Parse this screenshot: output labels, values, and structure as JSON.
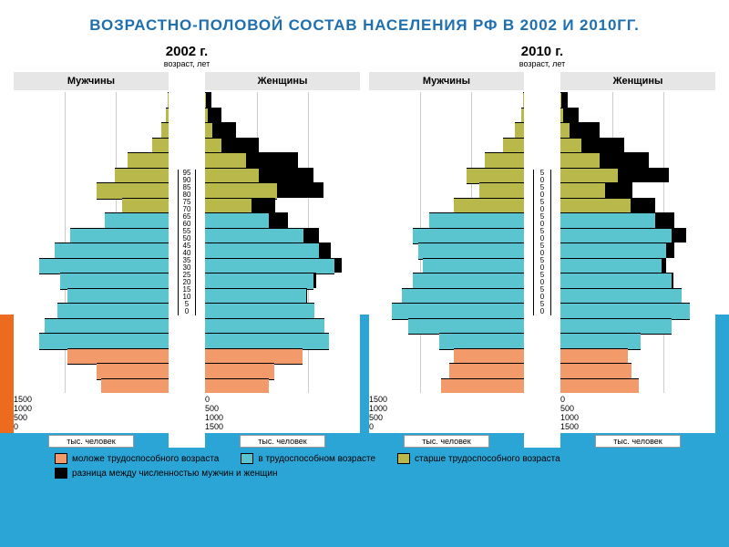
{
  "title": "ВОЗРАСТНО-ПОЛОВОЙ СОСТАВ НАСЕЛЕНИЯ РФ В 2002 И 2010ГГ.",
  "title_color": "#1e6fb0",
  "title_fontsize": 17,
  "colors": {
    "young": "#f39a6a",
    "working": "#5ac4cf",
    "older": "#b9b84a",
    "diff": "#000000",
    "band_blue": "#2aa5d6",
    "band_orange": "#ed6b1f"
  },
  "legend": [
    {
      "key": "young",
      "label": "моложе трудоспособного возраста"
    },
    {
      "key": "working",
      "label": "в трудоспособном возрасте"
    },
    {
      "key": "older",
      "label": "старше трудоспособного возраста"
    },
    {
      "key": "diff",
      "label": "разница между численностью мужчин и женщин"
    }
  ],
  "xaxis": {
    "max": 1500,
    "ticks": [
      1500,
      1000,
      500,
      0
    ],
    "unit_label": "тыс. человек"
  },
  "yaxis": {
    "label": "возраст, лет",
    "step": 5,
    "max": 95
  },
  "male_label": "Мужчины",
  "female_label": "Женщины",
  "charts": [
    {
      "title": "2002 г.",
      "yticks": [
        95,
        90,
        85,
        80,
        75,
        70,
        65,
        60,
        55,
        50,
        45,
        40,
        35,
        30,
        25,
        20,
        15,
        10,
        5,
        0
      ],
      "rows": [
        {
          "age": 95,
          "m": 5,
          "f": 60,
          "cat": "older"
        },
        {
          "age": 90,
          "m": 25,
          "f": 160,
          "cat": "older"
        },
        {
          "age": 85,
          "m": 70,
          "f": 300,
          "cat": "older"
        },
        {
          "age": 80,
          "m": 160,
          "f": 520,
          "cat": "older"
        },
        {
          "age": 75,
          "m": 400,
          "f": 900,
          "cat": "older"
        },
        {
          "age": 70,
          "m": 520,
          "f": 1050,
          "cat": "older"
        },
        {
          "age": 65,
          "m": 700,
          "f": 1150,
          "cat": "older"
        },
        {
          "age": 60,
          "m": 450,
          "f": 680,
          "cat": "older"
        },
        {
          "age": 55,
          "m": 620,
          "f": 800,
          "cat": "working"
        },
        {
          "age": 50,
          "m": 950,
          "f": 1100,
          "cat": "working"
        },
        {
          "age": 45,
          "m": 1100,
          "f": 1220,
          "cat": "working"
        },
        {
          "age": 40,
          "m": 1250,
          "f": 1320,
          "cat": "working"
        },
        {
          "age": 35,
          "m": 1050,
          "f": 1080,
          "cat": "working"
        },
        {
          "age": 30,
          "m": 980,
          "f": 990,
          "cat": "working"
        },
        {
          "age": 25,
          "m": 1080,
          "f": 1060,
          "cat": "working"
        },
        {
          "age": 20,
          "m": 1200,
          "f": 1160,
          "cat": "working"
        },
        {
          "age": 15,
          "m": 1250,
          "f": 1200,
          "cat": "working"
        },
        {
          "age": 10,
          "m": 980,
          "f": 940,
          "cat": "young"
        },
        {
          "age": 5,
          "m": 700,
          "f": 670,
          "cat": "young"
        },
        {
          "age": 0,
          "m": 650,
          "f": 620,
          "cat": "young"
        }
      ]
    },
    {
      "title": "2010 г.",
      "yticks": [
        5,
        0,
        5,
        0,
        5,
        0,
        5,
        0,
        5,
        0,
        5,
        0,
        5,
        0,
        5,
        0,
        5,
        0,
        5,
        0
      ],
      "rows": [
        {
          "age": 95,
          "m": 8,
          "f": 70,
          "cat": "older"
        },
        {
          "age": 90,
          "m": 30,
          "f": 180,
          "cat": "older"
        },
        {
          "age": 85,
          "m": 90,
          "f": 380,
          "cat": "older"
        },
        {
          "age": 80,
          "m": 200,
          "f": 620,
          "cat": "older"
        },
        {
          "age": 75,
          "m": 380,
          "f": 860,
          "cat": "older"
        },
        {
          "age": 70,
          "m": 560,
          "f": 1050,
          "cat": "older"
        },
        {
          "age": 65,
          "m": 430,
          "f": 700,
          "cat": "older"
        },
        {
          "age": 60,
          "m": 680,
          "f": 920,
          "cat": "older"
        },
        {
          "age": 55,
          "m": 920,
          "f": 1100,
          "cat": "working"
        },
        {
          "age": 50,
          "m": 1080,
          "f": 1220,
          "cat": "working"
        },
        {
          "age": 45,
          "m": 1020,
          "f": 1100,
          "cat": "working"
        },
        {
          "age": 40,
          "m": 980,
          "f": 1020,
          "cat": "working"
        },
        {
          "age": 35,
          "m": 1080,
          "f": 1090,
          "cat": "working"
        },
        {
          "age": 30,
          "m": 1180,
          "f": 1170,
          "cat": "working"
        },
        {
          "age": 25,
          "m": 1280,
          "f": 1250,
          "cat": "working"
        },
        {
          "age": 20,
          "m": 1120,
          "f": 1080,
          "cat": "working"
        },
        {
          "age": 15,
          "m": 820,
          "f": 780,
          "cat": "working"
        },
        {
          "age": 10,
          "m": 680,
          "f": 650,
          "cat": "young"
        },
        {
          "age": 5,
          "m": 720,
          "f": 690,
          "cat": "young"
        },
        {
          "age": 0,
          "m": 800,
          "f": 760,
          "cat": "young"
        }
      ]
    }
  ]
}
